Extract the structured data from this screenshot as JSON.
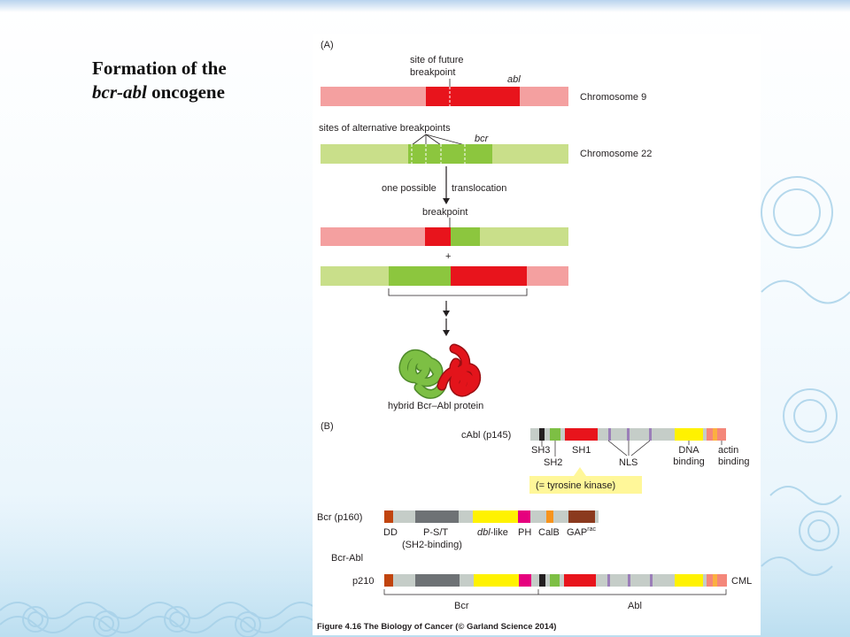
{
  "slide": {
    "title_line1": "Formation of the",
    "title_italic": "bcr-abl",
    "title_rest": " oncogene"
  },
  "panelA": {
    "label": "(A)",
    "future_breakpoint_label_1": "site of future",
    "future_breakpoint_label_2": "breakpoint",
    "abl_label": "abl",
    "chr9_label": "Chromosome 9",
    "alt_breakpoints_label": "sites of alternative breakpoints",
    "bcr_label": "bcr",
    "chr22_label": "Chromosome 22",
    "translocation_label_1": "one possible",
    "translocation_label_2": "translocation",
    "breakpoint_label": "breakpoint",
    "plus": "+",
    "protein_label": "hybrid Bcr–Abl protein"
  },
  "panelB": {
    "label": "(B)",
    "cabl_label": "cAbl (p145)",
    "sh3": "SH3",
    "sh2": "SH2",
    "sh1": "SH1",
    "nls": "NLS",
    "dna_binding_1": "DNA",
    "dna_binding_2": "binding",
    "actin_binding_1": "actin",
    "actin_binding_2": "binding",
    "tyrosine_kinase": "(= tyrosine kinase)",
    "bcr_label": "Bcr (p160)",
    "dd": "DD",
    "pst": "P-S/T",
    "sh2_binding": "(SH2-binding)",
    "dbl_italic": "dbl",
    "dbl_rest": "-like",
    "ph": "PH",
    "calb": "CalB",
    "gap": "GAP",
    "gap_sup": "rac",
    "bcrabl_label": "Bcr-Abl",
    "p210": "p210",
    "cml": "CML",
    "bcr_bracket": "Bcr",
    "abl_bracket": "Abl"
  },
  "caption": "Figure 4.16 The Biology of Cancer (© Garland Science 2014)",
  "colors": {
    "chr9_light": "#f4a0a0",
    "abl_red": "#e8141c",
    "chr22_light": "#c9df8a",
    "bcr_green": "#8cc63e",
    "protein_green": "#7dbf44",
    "protein_red": "#e3141b",
    "domain_gray": "#c5cdc8",
    "pst_gray": "#6e7275",
    "black": "#231f20",
    "yellow": "#fff200",
    "magenta": "#e6007e",
    "orange": "#f7941d",
    "brown": "#8b3a1e",
    "dd_orange": "#c1440e",
    "purple": "#9b7fb8",
    "salmon": "#f4877a",
    "callout_yellow": "#fff799"
  }
}
